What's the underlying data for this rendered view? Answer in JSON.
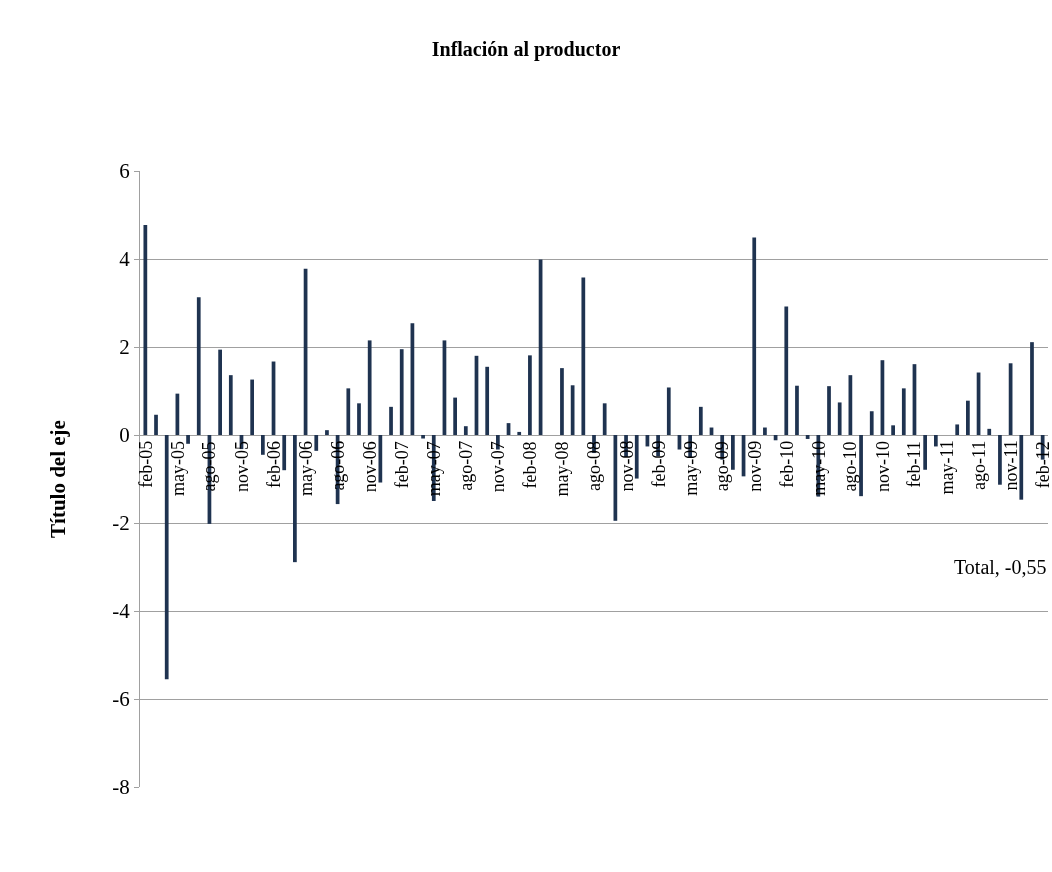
{
  "chart_data": {
    "type": "bar",
    "title": "Inflación al productor",
    "ylabel": "Título del eje",
    "categories": [
      "feb-05",
      null,
      null,
      "may-05",
      null,
      null,
      "ago-05",
      null,
      null,
      "nov-05",
      null,
      null,
      "feb-06",
      null,
      null,
      "may-06",
      null,
      null,
      "ago-06",
      null,
      null,
      "nov-06",
      null,
      null,
      "feb-07",
      null,
      null,
      "may-07",
      null,
      null,
      "ago-07",
      null,
      null,
      "nov-07",
      null,
      null,
      "feb-08",
      null,
      null,
      "may-08",
      null,
      null,
      "ago-08",
      null,
      null,
      "nov-08",
      null,
      null,
      "feb-09",
      null,
      null,
      "may-09",
      null,
      null,
      "ago-09",
      null,
      null,
      "nov-09",
      null,
      null,
      "feb-10",
      null,
      null,
      "may-10",
      null,
      null,
      "ago-10",
      null,
      null,
      "nov-10",
      null,
      null,
      "feb-11",
      null,
      null,
      "may-11",
      null,
      null,
      "ago-11",
      null,
      null,
      "nov-11",
      null,
      null,
      "feb-12"
    ],
    "values": [
      4.77,
      0.46,
      -5.55,
      0.94,
      -0.2,
      3.13,
      -2.02,
      1.94,
      1.36,
      -0.32,
      1.26,
      -0.45,
      1.67,
      -0.8,
      -2.89,
      3.78,
      -0.36,
      0.11,
      -1.57,
      1.06,
      0.72,
      2.15,
      -1.08,
      0.64,
      1.95,
      2.54,
      -0.08,
      -1.5,
      2.15,
      0.85,
      0.2,
      1.8,
      1.55,
      -0.33,
      0.27,
      0.07,
      1.81,
      3.99,
      0,
      1.52,
      1.13,
      3.58,
      -0.41,
      0.72,
      -1.95,
      -0.5,
      -0.99,
      -0.26,
      -0.48,
      1.08,
      -0.33,
      -0.5,
      0.64,
      0.17,
      -0.56,
      -0.79,
      -0.94,
      4.49,
      0.17,
      -0.12,
      2.92,
      1.12,
      -0.09,
      -1.4,
      1.11,
      0.74,
      1.36,
      -1.39,
      0.54,
      1.7,
      0.22,
      1.06,
      1.61,
      -0.79,
      -0.26,
      0,
      0.24,
      0.78,
      1.42,
      0.14,
      -1.13,
      1.63,
      -1.47,
      2.11,
      -0.56
    ],
    "color": "#1f3350",
    "ylim": [
      -8,
      6
    ],
    "yticks": [
      -8,
      -6,
      -4,
      -2,
      0,
      2,
      4,
      6
    ],
    "grid": "y",
    "annotations": [
      "Total, -0,55"
    ]
  }
}
